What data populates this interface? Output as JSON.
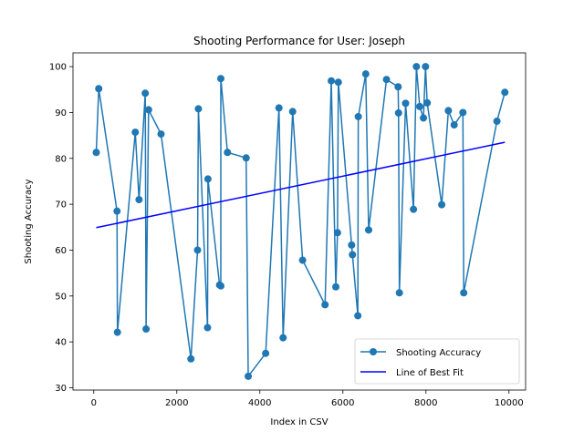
{
  "colors": {
    "series_accuracy": "#1f77b4",
    "series_fit": "#0000ff",
    "axis": "#000000",
    "background": "#ffffff",
    "legend_border": "#cccccc"
  },
  "chart_data": {
    "type": "line",
    "title": "Shooting Performance for User: Joseph",
    "xlabel": "Index in CSV",
    "ylabel": "Shooting Accuracy",
    "xlim": [
      -500,
      10400
    ],
    "ylim": [
      29.5,
      103
    ],
    "xticks": [
      0,
      2000,
      4000,
      6000,
      8000,
      10000
    ],
    "yticks": [
      30,
      40,
      50,
      60,
      70,
      80,
      90,
      100
    ],
    "grid": false,
    "legend_position": "lower right",
    "series": [
      {
        "name": "Shooting Accuracy",
        "style": "line-with-markers",
        "color": "#1f77b4",
        "points": [
          [
            60,
            81.3
          ],
          [
            120,
            95.2
          ],
          [
            560,
            68.5
          ],
          [
            570,
            42.1
          ],
          [
            1000,
            85.7
          ],
          [
            1090,
            71.0
          ],
          [
            1240,
            94.2
          ],
          [
            1260,
            42.8
          ],
          [
            1320,
            90.6
          ],
          [
            1620,
            85.3
          ],
          [
            2340,
            36.3
          ],
          [
            2500,
            60.0
          ],
          [
            2520,
            90.8
          ],
          [
            2740,
            43.1
          ],
          [
            2750,
            75.5
          ],
          [
            3030,
            52.4
          ],
          [
            3060,
            52.2
          ],
          [
            3060,
            97.4
          ],
          [
            3220,
            81.3
          ],
          [
            3670,
            80.1
          ],
          [
            3720,
            32.5
          ],
          [
            4140,
            37.5
          ],
          [
            4460,
            91.0
          ],
          [
            4560,
            40.9
          ],
          [
            4790,
            90.2
          ],
          [
            5030,
            57.8
          ],
          [
            5570,
            48.1
          ],
          [
            5720,
            96.9
          ],
          [
            5830,
            52.0
          ],
          [
            5870,
            63.8
          ],
          [
            5890,
            96.6
          ],
          [
            6210,
            61.1
          ],
          [
            6230,
            59.0
          ],
          [
            6360,
            45.7
          ],
          [
            6370,
            89.1
          ],
          [
            6550,
            98.4
          ],
          [
            6620,
            64.4
          ],
          [
            7050,
            97.2
          ],
          [
            7330,
            95.6
          ],
          [
            7340,
            89.9
          ],
          [
            7360,
            50.7
          ],
          [
            7510,
            92.0
          ],
          [
            7700,
            68.9
          ],
          [
            7770,
            100.0
          ],
          [
            7850,
            91.3
          ],
          [
            7940,
            88.8
          ],
          [
            7990,
            100.0
          ],
          [
            8030,
            92.1
          ],
          [
            8380,
            69.9
          ],
          [
            8540,
            90.4
          ],
          [
            8680,
            87.3
          ],
          [
            8890,
            90.0
          ],
          [
            8910,
            50.7
          ],
          [
            9710,
            88.1
          ],
          [
            9900,
            94.4
          ]
        ]
      },
      {
        "name": "Line of Best Fit",
        "style": "line",
        "color": "#0000ff",
        "points": [
          [
            60,
            64.9
          ],
          [
            9900,
            83.5
          ]
        ]
      }
    ]
  }
}
